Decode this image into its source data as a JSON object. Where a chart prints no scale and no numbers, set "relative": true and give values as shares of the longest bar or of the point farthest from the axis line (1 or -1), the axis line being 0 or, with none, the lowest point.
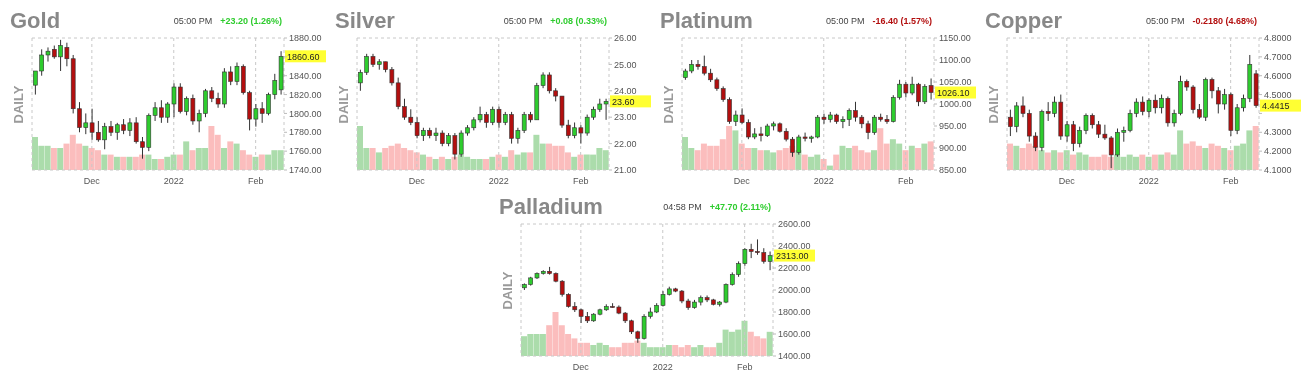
{
  "chart_data": [
    {
      "type": "candlestick",
      "title": "Gold",
      "ylabel": "DAILY",
      "grid": true,
      "annotations": [
        "05:00 PM",
        "+23.20 (1.26%)",
        "1860.60"
      ],
      "categories": [
        null,
        null,
        null,
        null,
        null,
        null,
        null,
        null,
        null,
        "Dec",
        null,
        null,
        null,
        null,
        null,
        null,
        null,
        null,
        null,
        null,
        null,
        null,
        "2022",
        null,
        null,
        null,
        null,
        null,
        null,
        null,
        null,
        null,
        null,
        null,
        null,
        "Feb",
        null,
        null,
        null,
        null
      ],
      "ylim": [
        1740,
        1880
      ],
      "yticks": [
        {
          "value": 1740,
          "label": "1740.00"
        },
        {
          "value": 1760,
          "label": "1760.00"
        },
        {
          "value": 1780,
          "label": "1780.00"
        },
        {
          "value": 1800,
          "label": "1800.00"
        },
        {
          "value": 1820,
          "label": "1820.00"
        },
        {
          "value": 1840,
          "label": "1840.00"
        },
        {
          "value": 1860,
          "label": null
        },
        {
          "value": 1880,
          "label": "1880.00"
        }
      ],
      "ohlc": [
        [
          1830,
          1845,
          1820,
          1845
        ],
        [
          1845,
          1868,
          1840,
          1862
        ],
        [
          1862,
          1870,
          1855,
          1866
        ],
        [
          1868,
          1872,
          1858,
          1860
        ],
        [
          1860,
          1878,
          1845,
          1872
        ],
        [
          1870,
          1875,
          1850,
          1858
        ],
        [
          1858,
          1862,
          1800,
          1805
        ],
        [
          1805,
          1812,
          1780,
          1785
        ],
        [
          1785,
          1800,
          1778,
          1790
        ],
        [
          1790,
          1805,
          1772,
          1780
        ],
        [
          1780,
          1792,
          1770,
          1772
        ],
        [
          1772,
          1790,
          1762,
          1786
        ],
        [
          1786,
          1792,
          1776,
          1780
        ],
        [
          1780,
          1790,
          1772,
          1788
        ],
        [
          1788,
          1794,
          1778,
          1782
        ],
        [
          1782,
          1795,
          1776,
          1790
        ],
        [
          1790,
          1796,
          1768,
          1770
        ],
        [
          1770,
          1775,
          1752,
          1764
        ],
        [
          1764,
          1800,
          1760,
          1798
        ],
        [
          1798,
          1812,
          1792,
          1806
        ],
        [
          1806,
          1814,
          1790,
          1796
        ],
        [
          1796,
          1812,
          1790,
          1810
        ],
        [
          1810,
          1832,
          1796,
          1828
        ],
        [
          1828,
          1832,
          1800,
          1802
        ],
        [
          1802,
          1818,
          1798,
          1816
        ],
        [
          1816,
          1820,
          1788,
          1792
        ],
        [
          1792,
          1804,
          1780,
          1800
        ],
        [
          1800,
          1826,
          1796,
          1824
        ],
        [
          1824,
          1828,
          1812,
          1816
        ],
        [
          1816,
          1822,
          1806,
          1810
        ],
        [
          1810,
          1848,
          1806,
          1844
        ],
        [
          1844,
          1850,
          1830,
          1834
        ],
        [
          1834,
          1854,
          1830,
          1850
        ],
        [
          1850,
          1852,
          1820,
          1822
        ],
        [
          1822,
          1824,
          1782,
          1794
        ],
        [
          1794,
          1810,
          1786,
          1805
        ],
        [
          1805,
          1812,
          1790,
          1800
        ],
        [
          1800,
          1822,
          1798,
          1820
        ],
        [
          1820,
          1842,
          1815,
          1835
        ],
        [
          1825,
          1866,
          1820,
          1860.6
        ]
      ],
      "colors": [
        "#2ecc2e",
        "#2ecc2e",
        "#2ecc2e",
        "#b30f0f",
        "#2ecc2e",
        "#b30f0f",
        "#b30f0f",
        "#b30f0f",
        "#2ecc2e",
        "#b30f0f",
        "#b30f0f",
        "#2ecc2e",
        "#b30f0f",
        "#2ecc2e",
        "#b30f0f",
        "#2ecc2e",
        "#b30f0f",
        "#b30f0f",
        "#2ecc2e",
        "#2ecc2e",
        "#b30f0f",
        "#2ecc2e",
        "#2ecc2e",
        "#b30f0f",
        "#2ecc2e",
        "#b30f0f",
        "#2ecc2e",
        "#2ecc2e",
        "#b30f0f",
        "#b30f0f",
        "#2ecc2e",
        "#b30f0f",
        "#2ecc2e",
        "#b30f0f",
        "#b30f0f",
        "#2ecc2e",
        "#b30f0f",
        "#2ecc2e",
        "#2ecc2e",
        "#2ecc2e"
      ]
    },
    {
      "type": "bar",
      "relative": true,
      "values": [
        0.75,
        0.55,
        0.55,
        0.5,
        0.5,
        0.6,
        0.8,
        0.6,
        0.55,
        0.5,
        0.45,
        0.35,
        0.35,
        0.3,
        0.3,
        0.3,
        0.3,
        0.35,
        0.35,
        0.25,
        0.25,
        0.3,
        0.35,
        0.35,
        0.65,
        0.45,
        0.5,
        0.5,
        1,
        0.8,
        0.5,
        0.65,
        0.6,
        0.45,
        0.35,
        0.3,
        0.35,
        0.35,
        0.45,
        0.45
      ],
      "colors": [
        "#abdcab",
        "#abdcab",
        "#abdcab",
        "#fbbdbd",
        "#abdcab",
        "#fbbdbd",
        "#fbbdbd",
        "#fbbdbd",
        "#abdcab",
        "#fbbdbd",
        "#fbbdbd",
        "#abdcab",
        "#fbbdbd",
        "#abdcab",
        "#fbbdbd",
        "#abdcab",
        "#fbbdbd",
        "#fbbdbd",
        "#abdcab",
        "#abdcab",
        "#fbbdbd",
        "#abdcab",
        "#abdcab",
        "#fbbdbd",
        "#abdcab",
        "#fbbdbd",
        "#abdcab",
        "#abdcab",
        "#fbbdbd",
        "#fbbdbd",
        "#abdcab",
        "#fbbdbd",
        "#abdcab",
        "#fbbdbd",
        "#fbbdbd",
        "#abdcab",
        "#fbbdbd",
        "#abdcab",
        "#abdcab",
        "#abdcab"
      ]
    },
    {
      "type": "candlestick",
      "title": "Silver",
      "ylabel": "DAILY",
      "grid": true,
      "annotations": [
        "05:00 PM",
        "+0.08 (0.33%)",
        "23.60"
      ],
      "categories": [
        null,
        null,
        null,
        null,
        null,
        null,
        null,
        null,
        null,
        "Dec",
        null,
        null,
        null,
        null,
        null,
        null,
        null,
        null,
        null,
        null,
        null,
        null,
        "2022",
        null,
        null,
        null,
        null,
        null,
        null,
        null,
        null,
        null,
        null,
        null,
        null,
        "Feb",
        null,
        null,
        null,
        null
      ],
      "ylim": [
        21,
        26
      ],
      "yticks": [
        {
          "value": 21,
          "label": "21.00"
        },
        {
          "value": 22,
          "label": "22.00"
        },
        {
          "value": 23,
          "label": "23.00"
        },
        {
          "value": 24,
          "label": "24.00"
        },
        {
          "value": 25,
          "label": "25.00"
        },
        {
          "value": 26,
          "label": "26.00"
        }
      ],
      "ohlc": [
        [
          24.3,
          24.8,
          24.0,
          24.7
        ],
        [
          24.7,
          25.4,
          24.6,
          25.3
        ],
        [
          25.3,
          25.4,
          24.9,
          25.0
        ],
        [
          25.0,
          25.2,
          24.8,
          25.1
        ],
        [
          25.1,
          25.1,
          24.7,
          24.8
        ],
        [
          24.8,
          24.9,
          24.2,
          24.3
        ],
        [
          24.3,
          24.5,
          23.3,
          23.4
        ],
        [
          23.4,
          23.7,
          22.9,
          23.0
        ],
        [
          23.0,
          23.3,
          22.7,
          22.8
        ],
        [
          22.8,
          23.0,
          22.2,
          22.3
        ],
        [
          22.3,
          22.6,
          22.1,
          22.5
        ],
        [
          22.5,
          22.6,
          22.2,
          22.3
        ],
        [
          22.3,
          22.6,
          22.1,
          22.4
        ],
        [
          22.4,
          22.5,
          21.9,
          22.0
        ],
        [
          22.0,
          22.4,
          21.9,
          22.3
        ],
        [
          22.3,
          22.4,
          21.4,
          21.6
        ],
        [
          21.6,
          22.5,
          21.5,
          22.4
        ],
        [
          22.4,
          22.7,
          22.3,
          22.6
        ],
        [
          22.6,
          23.0,
          22.5,
          22.9
        ],
        [
          22.9,
          23.4,
          22.8,
          23.1
        ],
        [
          23.1,
          23.2,
          22.6,
          22.8
        ],
        [
          22.8,
          23.4,
          22.7,
          23.3
        ],
        [
          23.3,
          23.4,
          22.6,
          22.8
        ],
        [
          22.8,
          23.2,
          22.7,
          23.1
        ],
        [
          23.1,
          23.2,
          22.0,
          22.2
        ],
        [
          22.2,
          22.6,
          22.0,
          22.5
        ],
        [
          22.5,
          23.2,
          22.4,
          23.1
        ],
        [
          23.1,
          23.2,
          22.8,
          22.9
        ],
        [
          22.9,
          24.3,
          22.9,
          24.2
        ],
        [
          24.2,
          24.7,
          24.1,
          24.6
        ],
        [
          24.6,
          24.7,
          23.9,
          24.0
        ],
        [
          24.0,
          24.1,
          23.6,
          23.8
        ],
        [
          23.8,
          23.8,
          22.6,
          22.7
        ],
        [
          22.7,
          22.9,
          22.2,
          22.3
        ],
        [
          22.3,
          22.8,
          22.2,
          22.6
        ],
        [
          22.6,
          22.7,
          22.0,
          22.4
        ],
        [
          22.4,
          23.1,
          22.3,
          23.0
        ],
        [
          23.0,
          23.4,
          22.9,
          23.3
        ],
        [
          23.3,
          23.7,
          23.2,
          23.5
        ],
        [
          23.5,
          23.7,
          22.9,
          23.6
        ]
      ],
      "colors": [
        "#2ecc2e",
        "#2ecc2e",
        "#b30f0f",
        "#2ecc2e",
        "#b30f0f",
        "#b30f0f",
        "#b30f0f",
        "#b30f0f",
        "#b30f0f",
        "#b30f0f",
        "#2ecc2e",
        "#b30f0f",
        "#2ecc2e",
        "#b30f0f",
        "#2ecc2e",
        "#b30f0f",
        "#2ecc2e",
        "#2ecc2e",
        "#2ecc2e",
        "#2ecc2e",
        "#b30f0f",
        "#2ecc2e",
        "#b30f0f",
        "#2ecc2e",
        "#b30f0f",
        "#2ecc2e",
        "#2ecc2e",
        "#b30f0f",
        "#2ecc2e",
        "#2ecc2e",
        "#b30f0f",
        "#b30f0f",
        "#b30f0f",
        "#b30f0f",
        "#2ecc2e",
        "#b30f0f",
        "#2ecc2e",
        "#2ecc2e",
        "#2ecc2e",
        "#2ecc2e"
      ]
    },
    {
      "type": "bar",
      "relative": true,
      "values": [
        1,
        0.5,
        0.5,
        0.4,
        0.5,
        0.55,
        0.6,
        0.5,
        0.45,
        0.4,
        0.35,
        0.3,
        0.25,
        0.3,
        0.25,
        0.3,
        0.35,
        0.3,
        0.25,
        0.25,
        0.25,
        0.3,
        0.35,
        0.3,
        0.45,
        0.35,
        0.4,
        0.4,
        0.8,
        0.6,
        0.6,
        0.55,
        0.55,
        0.4,
        0.3,
        0.35,
        0.35,
        0.35,
        0.5,
        0.45
      ],
      "colors": [
        "#abdcab",
        "#abdcab",
        "#fbbdbd",
        "#abdcab",
        "#fbbdbd",
        "#fbbdbd",
        "#fbbdbd",
        "#fbbdbd",
        "#fbbdbd",
        "#fbbdbd",
        "#abdcab",
        "#fbbdbd",
        "#abdcab",
        "#fbbdbd",
        "#abdcab",
        "#fbbdbd",
        "#abdcab",
        "#abdcab",
        "#abdcab",
        "#abdcab",
        "#fbbdbd",
        "#abdcab",
        "#fbbdbd",
        "#abdcab",
        "#fbbdbd",
        "#abdcab",
        "#abdcab",
        "#fbbdbd",
        "#abdcab",
        "#abdcab",
        "#fbbdbd",
        "#fbbdbd",
        "#fbbdbd",
        "#fbbdbd",
        "#abdcab",
        "#fbbdbd",
        "#abdcab",
        "#abdcab",
        "#abdcab",
        "#abdcab"
      ]
    },
    {
      "type": "candlestick",
      "title": "Platinum",
      "ylabel": "DAILY",
      "grid": true,
      "annotations": [
        "05:00 PM",
        "-16.40 (1.57%)",
        "1026.10"
      ],
      "categories": [
        null,
        null,
        null,
        null,
        null,
        null,
        null,
        null,
        null,
        "Dec",
        null,
        null,
        null,
        null,
        null,
        null,
        null,
        null,
        null,
        null,
        null,
        null,
        "2022",
        null,
        null,
        null,
        null,
        null,
        null,
        null,
        null,
        null,
        null,
        null,
        null,
        "Feb",
        null,
        null,
        null,
        null
      ],
      "ylim": [
        850,
        1150
      ],
      "yticks": [
        {
          "value": 850,
          "label": "850.00"
        },
        {
          "value": 900,
          "label": "900.00"
        },
        {
          "value": 950,
          "label": "950.00"
        },
        {
          "value": 1000,
          "label": "1000.00"
        },
        {
          "value": 1050,
          "label": "1050.00"
        },
        {
          "value": 1100,
          "label": "1100.00"
        },
        {
          "value": 1150,
          "label": "1150.00"
        }
      ],
      "ohlc": [
        [
          1060,
          1080,
          1055,
          1075
        ],
        [
          1075,
          1100,
          1070,
          1090
        ],
        [
          1090,
          1100,
          1078,
          1085
        ],
        [
          1085,
          1110,
          1065,
          1070
        ],
        [
          1070,
          1080,
          1050,
          1055
        ],
        [
          1055,
          1060,
          1030,
          1035
        ],
        [
          1035,
          1040,
          1005,
          1010
        ],
        [
          1010,
          1015,
          955,
          960
        ],
        [
          960,
          985,
          950,
          975
        ],
        [
          975,
          990,
          955,
          958
        ],
        [
          958,
          965,
          920,
          925
        ],
        [
          925,
          945,
          920,
          932
        ],
        [
          932,
          948,
          915,
          928
        ],
        [
          928,
          955,
          925,
          950
        ],
        [
          950,
          960,
          940,
          955
        ],
        [
          955,
          958,
          935,
          938
        ],
        [
          938,
          945,
          915,
          920
        ],
        [
          920,
          925,
          880,
          890
        ],
        [
          890,
          930,
          885,
          925
        ],
        [
          925,
          935,
          915,
          922
        ],
        [
          922,
          928,
          912,
          925
        ],
        [
          925,
          975,
          922,
          970
        ],
        [
          970,
          978,
          955,
          965
        ],
        [
          965,
          982,
          958,
          975
        ],
        [
          975,
          978,
          955,
          960
        ],
        [
          960,
          972,
          945,
          965
        ],
        [
          965,
          990,
          950,
          985
        ],
        [
          985,
          1005,
          960,
          970
        ],
        [
          970,
          975,
          945,
          955
        ],
        [
          955,
          962,
          920,
          935
        ],
        [
          935,
          975,
          930,
          970
        ],
        [
          970,
          978,
          960,
          965
        ],
        [
          965,
          975,
          955,
          960
        ],
        [
          960,
          1020,
          958,
          1015
        ],
        [
          1015,
          1055,
          1010,
          1045
        ],
        [
          1045,
          1050,
          1015,
          1025
        ],
        [
          1025,
          1062,
          1020,
          1045
        ],
        [
          1045,
          1048,
          995,
          1005
        ],
        [
          1005,
          1045,
          1000,
          1040
        ],
        [
          1042,
          1058,
          1010,
          1026.1
        ]
      ],
      "colors": [
        "#2ecc2e",
        "#2ecc2e",
        "#b30f0f",
        "#b30f0f",
        "#b30f0f",
        "#b30f0f",
        "#b30f0f",
        "#b30f0f",
        "#2ecc2e",
        "#b30f0f",
        "#b30f0f",
        "#2ecc2e",
        "#b30f0f",
        "#2ecc2e",
        "#2ecc2e",
        "#b30f0f",
        "#b30f0f",
        "#b30f0f",
        "#2ecc2e",
        "#b30f0f",
        "#2ecc2e",
        "#2ecc2e",
        "#b30f0f",
        "#2ecc2e",
        "#b30f0f",
        "#2ecc2e",
        "#2ecc2e",
        "#b30f0f",
        "#b30f0f",
        "#b30f0f",
        "#2ecc2e",
        "#b30f0f",
        "#b30f0f",
        "#2ecc2e",
        "#2ecc2e",
        "#b30f0f",
        "#2ecc2e",
        "#b30f0f",
        "#2ecc2e",
        "#b30f0f"
      ]
    },
    {
      "type": "bar",
      "relative": true,
      "values": [
        0.75,
        0.5,
        0.45,
        0.6,
        0.55,
        0.55,
        0.7,
        1,
        0.9,
        0.6,
        0.5,
        0.5,
        0.45,
        0.45,
        0.4,
        0.45,
        0.5,
        0.55,
        0.45,
        0.35,
        0.3,
        0.35,
        0.25,
        0.1,
        0.35,
        0.55,
        0.5,
        0.55,
        0.45,
        0.4,
        0.45,
        0.95,
        0.6,
        0.7,
        0.6,
        0.45,
        0.55,
        0.5,
        0.6,
        0.65
      ],
      "colors": [
        "#abdcab",
        "#abdcab",
        "#fbbdbd",
        "#fbbdbd",
        "#fbbdbd",
        "#fbbdbd",
        "#fbbdbd",
        "#fbbdbd",
        "#abdcab",
        "#fbbdbd",
        "#fbbdbd",
        "#abdcab",
        "#fbbdbd",
        "#abdcab",
        "#abdcab",
        "#fbbdbd",
        "#fbbdbd",
        "#fbbdbd",
        "#abdcab",
        "#fbbdbd",
        "#abdcab",
        "#abdcab",
        "#fbbdbd",
        "#abdcab",
        "#fbbdbd",
        "#abdcab",
        "#abdcab",
        "#fbbdbd",
        "#fbbdbd",
        "#fbbdbd",
        "#abdcab",
        "#fbbdbd",
        "#fbbdbd",
        "#abdcab",
        "#abdcab",
        "#fbbdbd",
        "#abdcab",
        "#fbbdbd",
        "#abdcab",
        "#fbbdbd"
      ]
    },
    {
      "type": "candlestick",
      "title": "Copper",
      "ylabel": "DAILY",
      "grid": true,
      "annotations": [
        "05:00 PM",
        "-0.2180 (4.68%)",
        "4.4415"
      ],
      "categories": [
        null,
        null,
        null,
        null,
        null,
        null,
        null,
        null,
        null,
        "Dec",
        null,
        null,
        null,
        null,
        null,
        null,
        null,
        null,
        null,
        null,
        null,
        null,
        "2022",
        null,
        null,
        null,
        null,
        null,
        null,
        null,
        null,
        null,
        null,
        null,
        null,
        "Feb",
        null,
        null,
        null,
        null
      ],
      "ylim": [
        4.1,
        4.8
      ],
      "yticks": [
        {
          "value": 4.1,
          "label": "4.1000"
        },
        {
          "value": 4.2,
          "label": "4.2000"
        },
        {
          "value": 4.3,
          "label": "4.3000"
        },
        {
          "value": 4.4,
          "label": null
        },
        {
          "value": 4.5,
          "label": "4.5000"
        },
        {
          "value": 4.6,
          "label": "4.6000"
        },
        {
          "value": 4.7,
          "label": "4.7000"
        },
        {
          "value": 4.8,
          "label": "4.8000"
        }
      ],
      "ohlc": [
        [
          4.38,
          4.42,
          4.28,
          4.33
        ],
        [
          4.33,
          4.46,
          4.3,
          4.44
        ],
        [
          4.44,
          4.49,
          4.38,
          4.4
        ],
        [
          4.4,
          4.42,
          4.25,
          4.28
        ],
        [
          4.28,
          4.3,
          4.2,
          4.22
        ],
        [
          4.22,
          4.42,
          4.2,
          4.41
        ],
        [
          4.41,
          4.46,
          4.36,
          4.4
        ],
        [
          4.4,
          4.49,
          4.38,
          4.46
        ],
        [
          4.46,
          4.5,
          4.26,
          4.28
        ],
        [
          4.28,
          4.36,
          4.25,
          4.34
        ],
        [
          4.34,
          4.36,
          4.2,
          4.24
        ],
        [
          4.24,
          4.33,
          4.22,
          4.31
        ],
        [
          4.31,
          4.4,
          4.29,
          4.39
        ],
        [
          4.39,
          4.4,
          4.32,
          4.34
        ],
        [
          4.34,
          4.36,
          4.27,
          4.29
        ],
        [
          4.29,
          4.34,
          4.26,
          4.27
        ],
        [
          4.27,
          4.28,
          4.11,
          4.18
        ],
        [
          4.18,
          4.32,
          4.17,
          4.3
        ],
        [
          4.3,
          4.33,
          4.25,
          4.31
        ],
        [
          4.31,
          4.42,
          4.3,
          4.4
        ],
        [
          4.4,
          4.48,
          4.38,
          4.46
        ],
        [
          4.46,
          4.49,
          4.39,
          4.41
        ],
        [
          4.41,
          4.48,
          4.38,
          4.47
        ],
        [
          4.47,
          4.5,
          4.4,
          4.43
        ],
        [
          4.43,
          4.5,
          4.4,
          4.48
        ],
        [
          4.48,
          4.49,
          4.33,
          4.35
        ],
        [
          4.35,
          4.42,
          4.33,
          4.4
        ],
        [
          4.4,
          4.6,
          4.39,
          4.57
        ],
        [
          4.57,
          4.58,
          4.52,
          4.54
        ],
        [
          4.54,
          4.55,
          4.4,
          4.42
        ],
        [
          4.42,
          4.45,
          4.37,
          4.38
        ],
        [
          4.38,
          4.59,
          4.36,
          4.58
        ],
        [
          4.58,
          4.59,
          4.48,
          4.52
        ],
        [
          4.52,
          4.54,
          4.4,
          4.45
        ],
        [
          4.45,
          4.53,
          4.42,
          4.5
        ],
        [
          4.5,
          4.51,
          4.28,
          4.31
        ],
        [
          4.31,
          4.45,
          4.29,
          4.43
        ],
        [
          4.43,
          4.5,
          4.41,
          4.48
        ],
        [
          4.48,
          4.71,
          4.46,
          4.66
        ],
        [
          4.61,
          4.63,
          4.43,
          4.4415
        ]
      ],
      "colors": [
        "#b30f0f",
        "#2ecc2e",
        "#b30f0f",
        "#b30f0f",
        "#b30f0f",
        "#2ecc2e",
        "#b30f0f",
        "#2ecc2e",
        "#b30f0f",
        "#2ecc2e",
        "#b30f0f",
        "#2ecc2e",
        "#2ecc2e",
        "#b30f0f",
        "#b30f0f",
        "#b30f0f",
        "#b30f0f",
        "#2ecc2e",
        "#2ecc2e",
        "#2ecc2e",
        "#2ecc2e",
        "#b30f0f",
        "#2ecc2e",
        "#b30f0f",
        "#2ecc2e",
        "#b30f0f",
        "#2ecc2e",
        "#2ecc2e",
        "#b30f0f",
        "#b30f0f",
        "#b30f0f",
        "#2ecc2e",
        "#b30f0f",
        "#b30f0f",
        "#2ecc2e",
        "#b30f0f",
        "#2ecc2e",
        "#2ecc2e",
        "#2ecc2e",
        "#b30f0f"
      ]
    },
    {
      "type": "bar",
      "relative": true,
      "values": [
        0.6,
        0.55,
        0.5,
        0.6,
        0.55,
        0.45,
        0.4,
        0.45,
        0.4,
        0.45,
        0.35,
        0.4,
        0.35,
        0.3,
        0.3,
        0.35,
        0.3,
        0.35,
        0.3,
        0.35,
        0.3,
        0.35,
        0.3,
        0.35,
        0.35,
        0.4,
        0.35,
        0.9,
        0.6,
        0.65,
        0.55,
        0.5,
        0.6,
        0.55,
        0.5,
        0.45,
        0.55,
        0.6,
        0.9,
        1
      ],
      "colors": [
        "#fbbdbd",
        "#abdcab",
        "#fbbdbd",
        "#fbbdbd",
        "#fbbdbd",
        "#abdcab",
        "#fbbdbd",
        "#abdcab",
        "#fbbdbd",
        "#abdcab",
        "#fbbdbd",
        "#abdcab",
        "#abdcab",
        "#fbbdbd",
        "#fbbdbd",
        "#fbbdbd",
        "#fbbdbd",
        "#abdcab",
        "#abdcab",
        "#abdcab",
        "#abdcab",
        "#fbbdbd",
        "#abdcab",
        "#fbbdbd",
        "#abdcab",
        "#fbbdbd",
        "#abdcab",
        "#abdcab",
        "#fbbdbd",
        "#fbbdbd",
        "#fbbdbd",
        "#abdcab",
        "#fbbdbd",
        "#fbbdbd",
        "#abdcab",
        "#fbbdbd",
        "#abdcab",
        "#abdcab",
        "#abdcab",
        "#fbbdbd"
      ]
    },
    {
      "type": "candlestick",
      "title": "Palladium",
      "ylabel": "DAILY",
      "grid": true,
      "annotations": [
        "04:58 PM",
        "+47.70 (2.11%)",
        "2313.00"
      ],
      "categories": [
        null,
        null,
        null,
        null,
        null,
        null,
        null,
        null,
        null,
        "Dec",
        null,
        null,
        null,
        null,
        null,
        null,
        null,
        null,
        null,
        null,
        null,
        null,
        "2022",
        null,
        null,
        null,
        null,
        null,
        null,
        null,
        null,
        null,
        null,
        null,
        null,
        "Feb",
        null,
        null,
        null,
        null
      ],
      "ylim": [
        1400,
        2600
      ],
      "yticks": [
        {
          "value": 1400,
          "label": "1400.00"
        },
        {
          "value": 1600,
          "label": "1600.00"
        },
        {
          "value": 1800,
          "label": "1800.00"
        },
        {
          "value": 2000,
          "label": "2000.00"
        },
        {
          "value": 2200,
          "label": "2200.00"
        },
        {
          "value": 2400,
          "label": "2400.00"
        },
        {
          "value": 2600,
          "label": "2600.00"
        }
      ],
      "ohlc": [
        [
          2020,
          2060,
          2000,
          2050
        ],
        [
          2050,
          2120,
          2040,
          2110
        ],
        [
          2110,
          2160,
          2100,
          2150
        ],
        [
          2150,
          2180,
          2140,
          2170
        ],
        [
          2170,
          2210,
          2140,
          2150
        ],
        [
          2150,
          2160,
          2070,
          2080
        ],
        [
          2080,
          2090,
          1940,
          1960
        ],
        [
          1960,
          1970,
          1840,
          1850
        ],
        [
          1850,
          1890,
          1800,
          1820
        ],
        [
          1820,
          1830,
          1700,
          1760
        ],
        [
          1760,
          1800,
          1700,
          1720
        ],
        [
          1720,
          1790,
          1710,
          1780
        ],
        [
          1780,
          1830,
          1770,
          1820
        ],
        [
          1820,
          1870,
          1810,
          1850
        ],
        [
          1850,
          1880,
          1840,
          1845
        ],
        [
          1845,
          1860,
          1780,
          1790
        ],
        [
          1790,
          1800,
          1700,
          1720
        ],
        [
          1720,
          1730,
          1600,
          1620
        ],
        [
          1620,
          1630,
          1520,
          1560
        ],
        [
          1560,
          1780,
          1550,
          1760
        ],
        [
          1760,
          1840,
          1740,
          1800
        ],
        [
          1800,
          1880,
          1790,
          1860
        ],
        [
          1860,
          1990,
          1850,
          1960
        ],
        [
          1960,
          2030,
          1950,
          2010
        ],
        [
          2010,
          2020,
          1980,
          1990
        ],
        [
          1990,
          2000,
          1880,
          1900
        ],
        [
          1900,
          1920,
          1820,
          1840
        ],
        [
          1840,
          1910,
          1830,
          1890
        ],
        [
          1890,
          1950,
          1860,
          1930
        ],
        [
          1930,
          1950,
          1890,
          1910
        ],
        [
          1910,
          1920,
          1860,
          1870
        ],
        [
          1870,
          1900,
          1850,
          1890
        ],
        [
          1890,
          2060,
          1880,
          2050
        ],
        [
          2050,
          2160,
          2040,
          2140
        ],
        [
          2140,
          2260,
          2120,
          2240
        ],
        [
          2240,
          2380,
          2220,
          2370
        ],
        [
          2370,
          2420,
          2290,
          2350
        ],
        [
          2350,
          2460,
          2320,
          2340
        ],
        [
          2340,
          2380,
          2240,
          2260
        ],
        [
          2260,
          2350,
          2180,
          2313
        ]
      ],
      "colors": [
        "#2ecc2e",
        "#2ecc2e",
        "#2ecc2e",
        "#2ecc2e",
        "#b30f0f",
        "#b30f0f",
        "#b30f0f",
        "#b30f0f",
        "#b30f0f",
        "#b30f0f",
        "#b30f0f",
        "#2ecc2e",
        "#2ecc2e",
        "#2ecc2e",
        "#b30f0f",
        "#b30f0f",
        "#b30f0f",
        "#b30f0f",
        "#b30f0f",
        "#2ecc2e",
        "#2ecc2e",
        "#2ecc2e",
        "#2ecc2e",
        "#2ecc2e",
        "#b30f0f",
        "#b30f0f",
        "#b30f0f",
        "#2ecc2e",
        "#2ecc2e",
        "#b30f0f",
        "#b30f0f",
        "#2ecc2e",
        "#2ecc2e",
        "#2ecc2e",
        "#2ecc2e",
        "#2ecc2e",
        "#b30f0f",
        "#b30f0f",
        "#b30f0f",
        "#2ecc2e"
      ]
    },
    {
      "type": "bar",
      "relative": true,
      "values": [
        0.45,
        0.5,
        0.5,
        0.5,
        0.7,
        1,
        0.7,
        0.5,
        0.4,
        0.3,
        0.3,
        0.25,
        0.3,
        0.25,
        0.2,
        0.2,
        0.3,
        0.3,
        0.35,
        0.3,
        0.2,
        0.2,
        0.2,
        0.25,
        0.25,
        0.2,
        0.25,
        0.2,
        0.25,
        0.2,
        0.2,
        0.3,
        0.6,
        0.55,
        0.6,
        0.8,
        0.55,
        0.45,
        0.4,
        0.55
      ],
      "colors": [
        "#abdcab",
        "#abdcab",
        "#abdcab",
        "#abdcab",
        "#fbbdbd",
        "#fbbdbd",
        "#fbbdbd",
        "#fbbdbd",
        "#fbbdbd",
        "#fbbdbd",
        "#fbbdbd",
        "#abdcab",
        "#abdcab",
        "#abdcab",
        "#fbbdbd",
        "#fbbdbd",
        "#fbbdbd",
        "#fbbdbd",
        "#fbbdbd",
        "#abdcab",
        "#abdcab",
        "#abdcab",
        "#abdcab",
        "#abdcab",
        "#fbbdbd",
        "#fbbdbd",
        "#fbbdbd",
        "#abdcab",
        "#abdcab",
        "#fbbdbd",
        "#fbbdbd",
        "#abdcab",
        "#abdcab",
        "#abdcab",
        "#abdcab",
        "#abdcab",
        "#fbbdbd",
        "#fbbdbd",
        "#fbbdbd",
        "#abdcab"
      ]
    }
  ]
}
